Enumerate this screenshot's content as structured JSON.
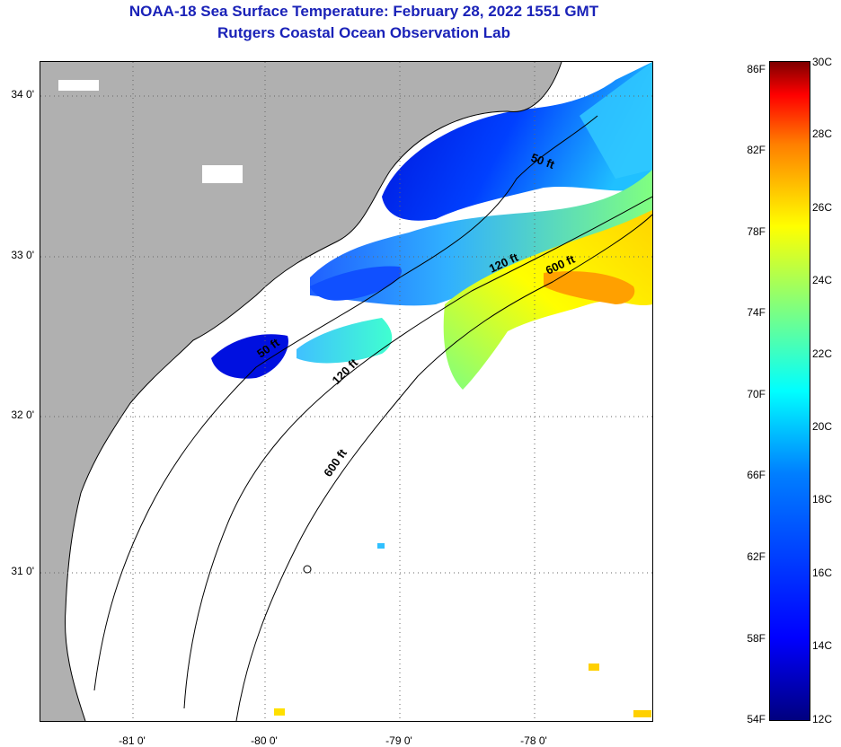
{
  "title": {
    "line1": "NOAA-18 Sea Surface Temperature:  February 28, 2022 1551 GMT",
    "line2": "Rutgers Coastal Ocean Observation Lab"
  },
  "map": {
    "latitude_labels": [
      "34 0'",
      "33 0'",
      "32 0'",
      "31 0'"
    ],
    "longitude_labels": [
      "-81 0'",
      "-80 0'",
      "-79 0'",
      "-78 0'"
    ],
    "contour_labels": {
      "isobath_50_north": "50 ft",
      "isobath_50_south": "50 ft",
      "isobath_120_north": "120 ft",
      "isobath_120_south": "120 ft",
      "isobath_600_north": "600 ft",
      "isobath_600_south": "600 ft"
    },
    "colors": {
      "land": "#b0b0b0",
      "no_data": "#ffffff",
      "coastline": "#000000"
    }
  },
  "colorbar": {
    "fahrenheit_labels": [
      "86F",
      "82F",
      "78F",
      "74F",
      "70F",
      "66F",
      "62F",
      "58F",
      "54F"
    ],
    "celsius_labels": [
      "30C",
      "28C",
      "26C",
      "24C",
      "22C",
      "20C",
      "18C",
      "16C",
      "14C",
      "12C"
    ],
    "range_celsius": [
      12,
      30
    ],
    "range_fahrenheit": [
      54,
      86
    ],
    "colors": [
      "#00007f",
      "#0000ff",
      "#007fff",
      "#00ffff",
      "#7fff7f",
      "#ffff00",
      "#ff7f00",
      "#ff0000",
      "#7f0000"
    ]
  }
}
